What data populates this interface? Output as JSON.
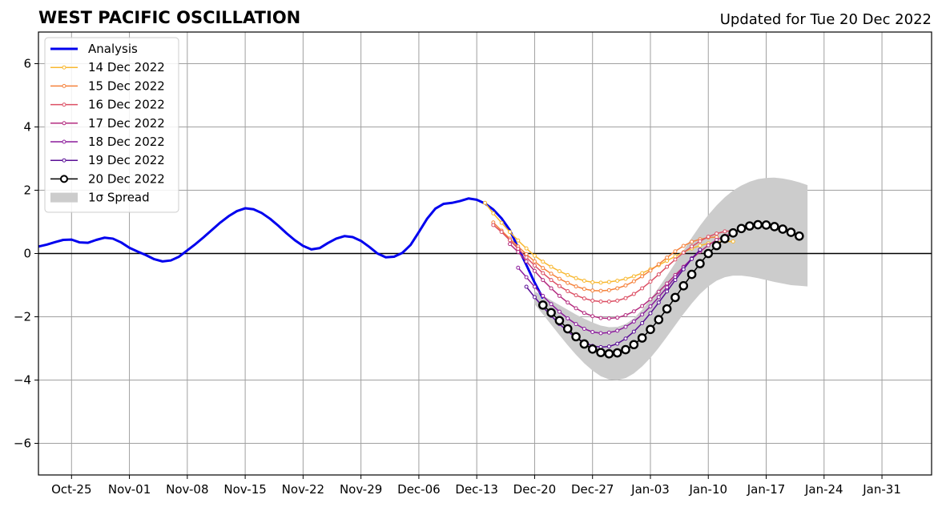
{
  "header": {
    "title": "WEST PACIFIC OSCILLATION",
    "updated": "Updated for Tue 20 Dec 2022"
  },
  "chart_data": {
    "type": "line",
    "title": "WEST PACIFIC OSCILLATION",
    "subtitle": "Updated for Tue 20 Dec 2022",
    "xlabel": "",
    "ylabel": "",
    "x_axis": {
      "type": "date",
      "range": [
        "2022-10-21",
        "2023-02-06"
      ],
      "ticks": [
        {
          "date": "2022-10-25",
          "label": "Oct-25"
        },
        {
          "date": "2022-11-01",
          "label": "Nov-01"
        },
        {
          "date": "2022-11-08",
          "label": "Nov-08"
        },
        {
          "date": "2022-11-15",
          "label": "Nov-15"
        },
        {
          "date": "2022-11-22",
          "label": "Nov-22"
        },
        {
          "date": "2022-11-29",
          "label": "Nov-29"
        },
        {
          "date": "2022-12-06",
          "label": "Dec-06"
        },
        {
          "date": "2022-12-13",
          "label": "Dec-13"
        },
        {
          "date": "2022-12-20",
          "label": "Dec-20"
        },
        {
          "date": "2022-12-27",
          "label": "Dec-27"
        },
        {
          "date": "2023-01-03",
          "label": "Jan-03"
        },
        {
          "date": "2023-01-10",
          "label": "Jan-10"
        },
        {
          "date": "2023-01-17",
          "label": "Jan-17"
        },
        {
          "date": "2023-01-24",
          "label": "Jan-24"
        },
        {
          "date": "2023-01-31",
          "label": "Jan-31"
        }
      ]
    },
    "y_axis": {
      "range": [
        -7,
        7
      ],
      "ticks": [
        {
          "value": -6,
          "label": "−6"
        },
        {
          "value": -4,
          "label": "−4"
        },
        {
          "value": -2,
          "label": "−2"
        },
        {
          "value": 0,
          "label": "0"
        },
        {
          "value": 2,
          "label": "2"
        },
        {
          "value": 4,
          "label": "4"
        },
        {
          "value": 6,
          "label": "6"
        }
      ]
    },
    "grid": true,
    "legend_position": "top-left",
    "analysis": {
      "name": "Analysis",
      "color": "#0000ee",
      "start": "2022-10-21",
      "values": [
        0.22,
        0.28,
        0.36,
        0.43,
        0.44,
        0.35,
        0.34,
        0.43,
        0.5,
        0.47,
        0.35,
        0.18,
        0.06,
        -0.05,
        -0.18,
        -0.25,
        -0.22,
        -0.1,
        0.1,
        0.3,
        0.52,
        0.75,
        0.98,
        1.18,
        1.34,
        1.43,
        1.4,
        1.28,
        1.1,
        0.88,
        0.64,
        0.42,
        0.24,
        0.13,
        0.17,
        0.33,
        0.47,
        0.55,
        0.52,
        0.4,
        0.21,
        0.0,
        -0.12,
        -0.1,
        0.02,
        0.27,
        0.68,
        1.1,
        1.42,
        1.57,
        1.6,
        1.66,
        1.74,
        1.7,
        1.58,
        1.39,
        1.11,
        0.74,
        0.18,
        -0.36,
        -0.92,
        -1.42
      ]
    },
    "forecasts": [
      {
        "name": "14 Dec 2022",
        "color": "#f8b830",
        "start": "2022-12-14",
        "values": [
          1.6,
          1.27,
          0.97,
          0.68,
          0.41,
          0.16,
          -0.07,
          -0.26,
          -0.42,
          -0.56,
          -0.68,
          -0.78,
          -0.86,
          -0.91,
          -0.92,
          -0.9,
          -0.86,
          -0.8,
          -0.72,
          -0.62,
          -0.5,
          -0.37,
          -0.23,
          -0.09,
          0.04,
          0.16,
          0.25,
          0.32,
          0.36,
          0.38,
          0.38
        ]
      },
      {
        "name": "15 Dec 2022",
        "color": "#f5823c",
        "start": "2022-12-15",
        "values": [
          0.98,
          0.72,
          0.47,
          0.22,
          -0.02,
          -0.25,
          -0.46,
          -0.64,
          -0.8,
          -0.93,
          -1.04,
          -1.12,
          -1.17,
          -1.18,
          -1.16,
          -1.1,
          -1.01,
          -0.88,
          -0.72,
          -0.54,
          -0.34,
          -0.13,
          0.07,
          0.24,
          0.37,
          0.45,
          0.5,
          0.52
        ]
      },
      {
        "name": "16 Dec 2022",
        "color": "#dc4f64",
        "start": "2022-12-15",
        "values": [
          0.9,
          0.68,
          0.42,
          0.15,
          -0.12,
          -0.38,
          -0.62,
          -0.84,
          -1.03,
          -1.19,
          -1.32,
          -1.42,
          -1.49,
          -1.52,
          -1.52,
          -1.49,
          -1.41,
          -1.28,
          -1.1,
          -0.89,
          -0.66,
          -0.42,
          -0.19,
          0.03,
          0.22,
          0.39,
          0.53,
          0.63,
          0.7,
          0.72
        ]
      },
      {
        "name": "17 Dec 2022",
        "color": "#b42d80",
        "start": "2022-12-17",
        "values": [
          0.3,
          0.05,
          -0.25,
          -0.55,
          -0.84,
          -1.1,
          -1.34,
          -1.55,
          -1.73,
          -1.88,
          -1.98,
          -2.04,
          -2.05,
          -2.03,
          -1.95,
          -1.83,
          -1.66,
          -1.45,
          -1.21,
          -0.95,
          -0.68,
          -0.42,
          -0.17,
          0.06,
          0.26,
          0.43,
          0.56,
          0.66
        ]
      },
      {
        "name": "18 Dec 2022",
        "color": "#8c1c9c",
        "start": "2022-12-18",
        "values": [
          -0.45,
          -0.75,
          -1.05,
          -1.34,
          -1.6,
          -1.84,
          -2.05,
          -2.23,
          -2.38,
          -2.48,
          -2.52,
          -2.5,
          -2.44,
          -2.32,
          -2.15,
          -1.93,
          -1.67,
          -1.38,
          -1.07,
          -0.75,
          -0.44,
          -0.15,
          0.1
        ]
      },
      {
        "name": "19 Dec 2022",
        "color": "#5a0f96",
        "start": "2022-12-19",
        "values": [
          -1.05,
          -1.38,
          -1.69,
          -1.97,
          -2.23,
          -2.46,
          -2.66,
          -2.81,
          -2.92,
          -2.96,
          -2.94,
          -2.85,
          -2.69,
          -2.47,
          -2.2,
          -1.89,
          -1.55,
          -1.2,
          -0.84,
          -0.5,
          -0.17,
          0.12
        ]
      }
    ],
    "forecast_current": {
      "name": "20 Dec 2022",
      "color": "#000000",
      "start": "2022-12-21",
      "values": [
        -1.63,
        -1.87,
        -2.12,
        -2.38,
        -2.63,
        -2.86,
        -3.02,
        -3.13,
        -3.17,
        -3.14,
        -3.04,
        -2.88,
        -2.67,
        -2.4,
        -2.09,
        -1.75,
        -1.39,
        -1.02,
        -0.66,
        -0.32,
        0.0,
        0.25,
        0.47,
        0.65,
        0.79,
        0.87,
        0.91,
        0.9,
        0.85,
        0.77,
        0.67,
        0.55
      ]
    },
    "spread": {
      "name": "1σ Spread",
      "color": "#cccccc",
      "start": "2022-12-20",
      "upper": [
        -1.2,
        -1.33,
        -1.48,
        -1.63,
        -1.78,
        -1.93,
        -2.06,
        -2.18,
        -2.28,
        -2.33,
        -2.32,
        -2.23,
        -2.05,
        -1.78,
        -1.45,
        -1.08,
        -0.7,
        -0.3,
        0.1,
        0.5,
        0.88,
        1.22,
        1.52,
        1.78,
        1.99,
        2.15,
        2.27,
        2.35,
        2.39,
        2.4,
        2.37,
        2.32,
        2.25,
        2.16
      ],
      "lower": [
        -1.6,
        -1.92,
        -2.25,
        -2.58,
        -2.9,
        -3.2,
        -3.47,
        -3.7,
        -3.88,
        -3.98,
        -4.0,
        -3.94,
        -3.79,
        -3.57,
        -3.3,
        -2.98,
        -2.63,
        -2.27,
        -1.91,
        -1.58,
        -1.28,
        -1.04,
        -0.86,
        -0.75,
        -0.7,
        -0.7,
        -0.73,
        -0.78,
        -0.84,
        -0.9,
        -0.95,
        -1.0,
        -1.02,
        -1.04
      ]
    },
    "legend": [
      {
        "label": "Analysis",
        "color": "#0000ee",
        "style": "line"
      },
      {
        "label": "14 Dec 2022",
        "color": "#f8b830",
        "style": "line-marker"
      },
      {
        "label": "15 Dec 2022",
        "color": "#f5823c",
        "style": "line-marker"
      },
      {
        "label": "16 Dec 2022",
        "color": "#dc4f64",
        "style": "line-marker"
      },
      {
        "label": "17 Dec 2022",
        "color": "#b42d80",
        "style": "line-marker"
      },
      {
        "label": "18 Dec 2022",
        "color": "#8c1c9c",
        "style": "line-marker"
      },
      {
        "label": "19 Dec 2022",
        "color": "#5a0f96",
        "style": "line-marker"
      },
      {
        "label": "20 Dec 2022",
        "color": "#000000",
        "style": "line-bigmarker"
      },
      {
        "label": "1σ Spread",
        "color": "#cccccc",
        "style": "patch"
      }
    ]
  }
}
